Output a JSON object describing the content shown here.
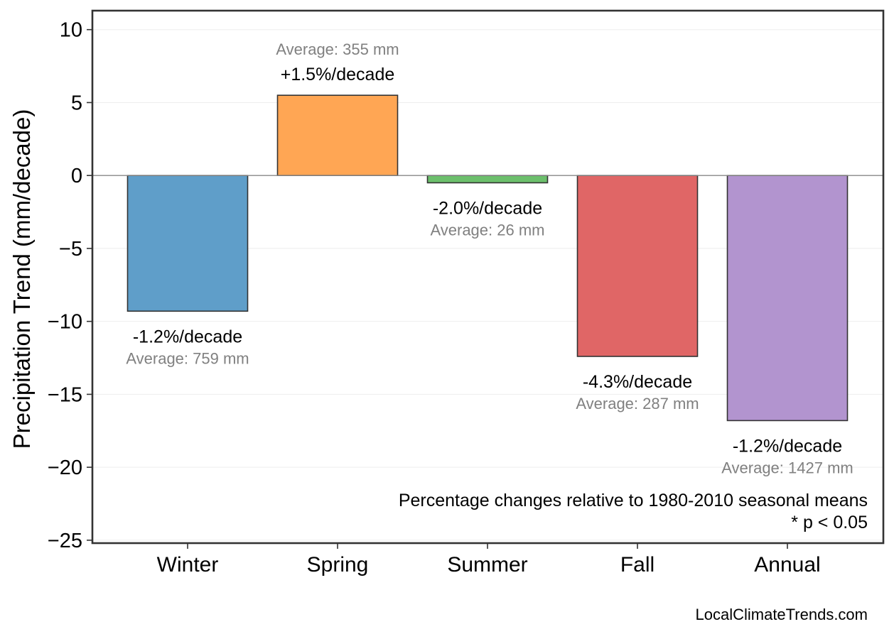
{
  "chart_data": {
    "type": "bar",
    "categories": [
      "Winter",
      "Spring",
      "Summer",
      "Fall",
      "Annual"
    ],
    "values": [
      -9.3,
      5.5,
      -0.5,
      -12.4,
      -16.8
    ],
    "colors": [
      "#5f9ec9",
      "#ffa654",
      "#6cbf6c",
      "#e06666",
      "#b294cf"
    ],
    "percent_labels": [
      "-1.2%/decade",
      "+1.5%/decade",
      "-2.0%/decade",
      "-4.3%/decade",
      "-1.2%/decade"
    ],
    "average_labels": [
      "Average: 759 mm",
      "Average: 355 mm",
      "Average: 26 mm",
      "Average: 287 mm",
      "Average: 1427 mm"
    ],
    "title": "",
    "xlabel": "",
    "ylabel": "Precipitation Trend (mm/decade)",
    "ylim": [
      -25.2,
      11.3
    ],
    "yticks": [
      10,
      5,
      0,
      -5,
      -10,
      -15,
      -20,
      -25
    ],
    "ytick_labels": [
      "10",
      "5",
      "0",
      "−5",
      "−10",
      "−15",
      "−20",
      "−25"
    ],
    "grid": true,
    "notes": [
      "Percentage changes relative to 1980-2010 seasonal means",
      "* p < 0.05"
    ],
    "source": "LocalClimateTrends.com"
  }
}
